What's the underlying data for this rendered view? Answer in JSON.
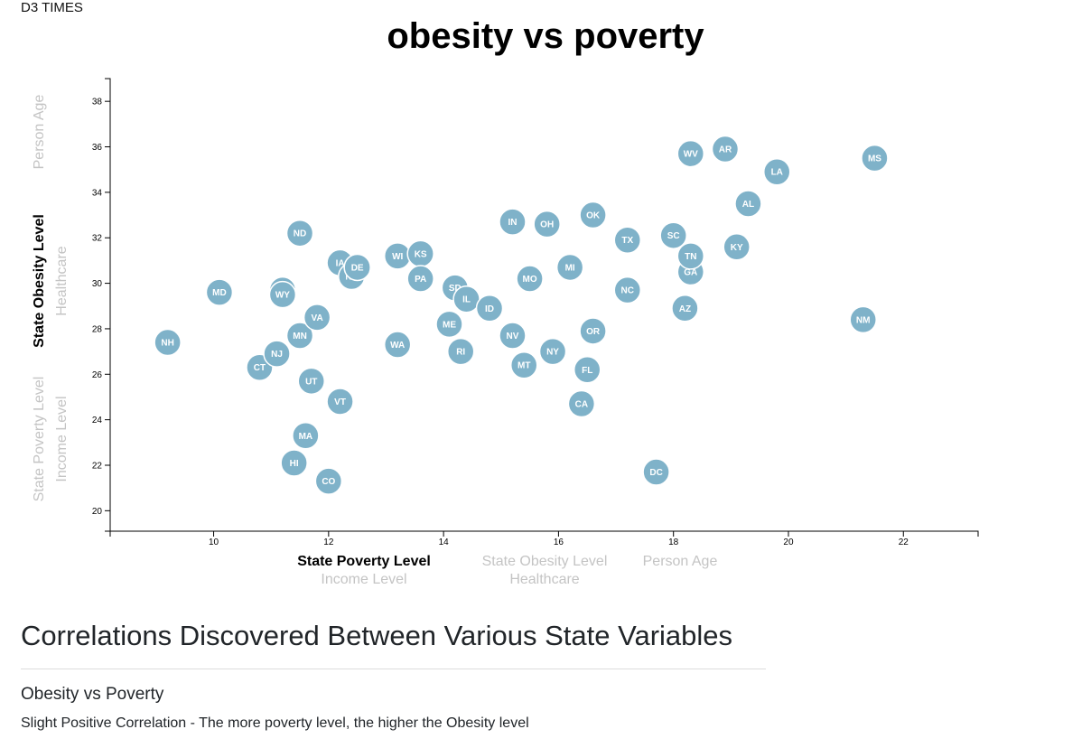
{
  "header": {
    "brand": "D3 TIMES"
  },
  "analysis": {
    "heading": "Correlations Discovered Between Various State Variables",
    "subheading": "Obesity vs Poverty",
    "finding": "Slight Positive Correlation - The more poverty level, the higher the Obesity level"
  },
  "colors": {
    "marker": "#7fb2c9",
    "active_label": "#000000",
    "inactive_label": "#c4c4c4"
  },
  "chart_data": {
    "type": "scatter",
    "title": "obesity vs poverty",
    "xlim": [
      8.2,
      23.3
    ],
    "ylim": [
      19.1,
      39.0
    ],
    "x_ticks": [
      10,
      12,
      14,
      16,
      18,
      20,
      22
    ],
    "y_ticks": [
      20,
      22,
      24,
      26,
      28,
      30,
      32,
      34,
      36,
      38
    ],
    "x_labels": [
      {
        "text": "State Poverty Level",
        "active": true
      },
      {
        "text": "Income Level",
        "active": false
      },
      {
        "text": "State Obesity Level",
        "active": false
      },
      {
        "text": "Healthcare",
        "active": false
      },
      {
        "text": "Person Age",
        "active": false
      }
    ],
    "y_labels": [
      {
        "text": "Person Age",
        "active": false
      },
      {
        "text": "State Obesity Level",
        "active": true
      },
      {
        "text": "Healthcare",
        "active": false
      },
      {
        "text": "State Poverty Level",
        "active": false
      },
      {
        "text": "Income Level",
        "active": false
      }
    ],
    "grid": false,
    "points": [
      {
        "label": "NH",
        "x": 9.2,
        "y": 27.4
      },
      {
        "label": "MD",
        "x": 10.1,
        "y": 29.6
      },
      {
        "label": "CT",
        "x": 10.8,
        "y": 26.3
      },
      {
        "label": "NJ",
        "x": 11.1,
        "y": 26.9
      },
      {
        "label": "WY",
        "x": 11.2,
        "y": 29.7
      },
      {
        "label": "WY",
        "x": 11.2,
        "y": 29.5
      },
      {
        "label": "HI",
        "x": 11.4,
        "y": 22.1
      },
      {
        "label": "ND",
        "x": 11.5,
        "y": 32.2
      },
      {
        "label": "MN",
        "x": 11.5,
        "y": 27.7
      },
      {
        "label": "MA",
        "x": 11.6,
        "y": 23.3
      },
      {
        "label": "UT",
        "x": 11.7,
        "y": 25.7
      },
      {
        "label": "VA",
        "x": 11.8,
        "y": 28.5
      },
      {
        "label": "CO",
        "x": 12.0,
        "y": 21.3
      },
      {
        "label": "IA",
        "x": 12.2,
        "y": 30.9
      },
      {
        "label": "VT",
        "x": 12.2,
        "y": 24.8
      },
      {
        "label": "NE",
        "x": 12.4,
        "y": 30.3
      },
      {
        "label": "DE",
        "x": 12.5,
        "y": 30.7
      },
      {
        "label": "WI",
        "x": 13.2,
        "y": 31.2
      },
      {
        "label": "WA",
        "x": 13.2,
        "y": 27.3
      },
      {
        "label": "KS",
        "x": 13.6,
        "y": 31.3
      },
      {
        "label": "PA",
        "x": 13.6,
        "y": 30.2
      },
      {
        "label": "ME",
        "x": 14.1,
        "y": 28.2
      },
      {
        "label": "SD",
        "x": 14.2,
        "y": 29.8
      },
      {
        "label": "IL",
        "x": 14.4,
        "y": 29.3
      },
      {
        "label": "RI",
        "x": 14.3,
        "y": 27.0
      },
      {
        "label": "ID",
        "x": 14.8,
        "y": 28.9
      },
      {
        "label": "IN",
        "x": 15.2,
        "y": 32.7
      },
      {
        "label": "NV",
        "x": 15.2,
        "y": 27.7
      },
      {
        "label": "MT",
        "x": 15.4,
        "y": 26.4
      },
      {
        "label": "MO",
        "x": 15.5,
        "y": 30.2
      },
      {
        "label": "OH",
        "x": 15.8,
        "y": 32.6
      },
      {
        "label": "NY",
        "x": 15.9,
        "y": 27.0
      },
      {
        "label": "MI",
        "x": 16.2,
        "y": 30.7
      },
      {
        "label": "CA",
        "x": 16.4,
        "y": 24.7
      },
      {
        "label": "FL",
        "x": 16.5,
        "y": 26.2
      },
      {
        "label": "OK",
        "x": 16.6,
        "y": 33.0
      },
      {
        "label": "OR",
        "x": 16.6,
        "y": 27.9
      },
      {
        "label": "NC",
        "x": 17.2,
        "y": 29.7
      },
      {
        "label": "TX",
        "x": 17.2,
        "y": 31.9
      },
      {
        "label": "DC",
        "x": 17.7,
        "y": 21.7
      },
      {
        "label": "SC",
        "x": 18.0,
        "y": 32.1
      },
      {
        "label": "AZ",
        "x": 18.2,
        "y": 28.9
      },
      {
        "label": "GA",
        "x": 18.3,
        "y": 30.5
      },
      {
        "label": "TN",
        "x": 18.3,
        "y": 31.2
      },
      {
        "label": "WV",
        "x": 18.3,
        "y": 35.7
      },
      {
        "label": "AR",
        "x": 18.9,
        "y": 35.9
      },
      {
        "label": "KY",
        "x": 19.1,
        "y": 31.6
      },
      {
        "label": "AL",
        "x": 19.3,
        "y": 33.5
      },
      {
        "label": "LA",
        "x": 19.8,
        "y": 34.9
      },
      {
        "label": "NM",
        "x": 21.3,
        "y": 28.4
      },
      {
        "label": "MS",
        "x": 21.5,
        "y": 35.5
      }
    ]
  }
}
